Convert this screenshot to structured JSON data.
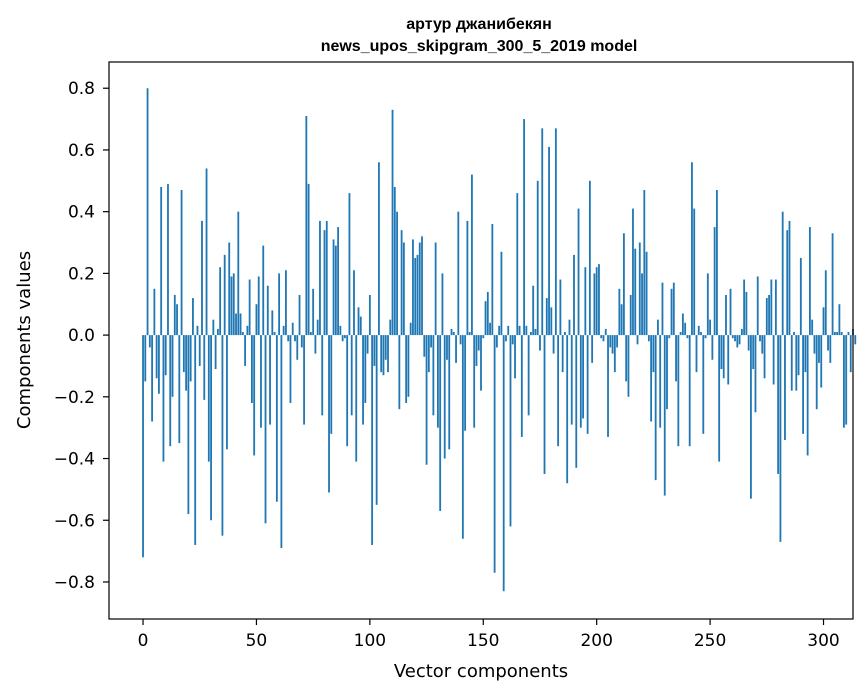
{
  "chart_data": {
    "type": "bar",
    "title_line1": "артур джанибекян",
    "title_line2": "news_upos_skipgram_300_5_2019 model",
    "xlabel": "Vector components",
    "ylabel": "Components values",
    "xlim": [
      -15,
      313
    ],
    "ylim": [
      -0.92,
      0.885
    ],
    "xticks": [
      0,
      50,
      100,
      150,
      200,
      250,
      300
    ],
    "xtick_labels": [
      "0",
      "50",
      "100",
      "150",
      "200",
      "250",
      "300"
    ],
    "yticks": [
      -0.8,
      -0.6,
      -0.4,
      -0.2,
      0.0,
      0.2,
      0.4,
      0.6,
      0.8
    ],
    "ytick_labels": [
      "−0.8",
      "−0.6",
      "−0.4",
      "−0.2",
      "0.0",
      "0.2",
      "0.4",
      "0.6",
      "0.8"
    ],
    "bar_color": "#1f77b4",
    "bar_width": 0.8,
    "values": [
      -0.72,
      -0.15,
      0.8,
      -0.04,
      -0.28,
      0.15,
      -0.14,
      -0.19,
      0.48,
      -0.41,
      -0.13,
      0.49,
      -0.36,
      -0.2,
      0.13,
      0.1,
      -0.35,
      0.47,
      -0.12,
      -0.18,
      -0.58,
      -0.15,
      0.12,
      -0.68,
      0.03,
      -0.1,
      0.37,
      -0.21,
      0.54,
      -0.41,
      -0.6,
      0.05,
      -0.11,
      0.02,
      0.22,
      -0.65,
      0.26,
      -0.37,
      0.3,
      0.19,
      0.2,
      0.07,
      0.4,
      0.07,
      0.01,
      -0.1,
      0.03,
      0.18,
      -0.22,
      -0.39,
      0.1,
      0.19,
      -0.3,
      0.29,
      -0.61,
      0.16,
      -0.29,
      0.08,
      0.01,
      -0.54,
      0.2,
      -0.69,
      0.03,
      0.21,
      -0.02,
      -0.22,
      0.04,
      -0.02,
      -0.08,
      0.13,
      -0.04,
      -0.29,
      0.71,
      0.49,
      0.01,
      0.15,
      -0.06,
      0.05,
      0.37,
      -0.26,
      0.34,
      0.37,
      -0.51,
      -0.32,
      0.31,
      0.29,
      0.35,
      0.03,
      -0.02,
      -0.01,
      -0.36,
      0.46,
      -0.26,
      0.21,
      -0.41,
      0.09,
      0.06,
      -0.29,
      -0.22,
      -0.06,
      0.13,
      -0.68,
      -0.1,
      -0.55,
      0.56,
      -0.12,
      -0.13,
      -0.08,
      -0.12,
      0.05,
      0.73,
      0.48,
      0.4,
      -0.24,
      0.34,
      0.3,
      -0.22,
      -0.2,
      0.04,
      0.31,
      0.25,
      0.26,
      0.3,
      0.32,
      -0.07,
      -0.42,
      -0.12,
      -0.04,
      -0.26,
      0.3,
      -0.3,
      -0.57,
      0.2,
      -0.4,
      -0.08,
      -0.37,
      0.02,
      0.01,
      -0.09,
      0.4,
      -0.03,
      -0.66,
      -0.31,
      0.37,
      0.01,
      0.52,
      -0.3,
      -0.1,
      -0.05,
      -0.18,
      -0.01,
      0.11,
      0.14,
      0.04,
      0.36,
      -0.77,
      -0.04,
      0.03,
      0.27,
      -0.83,
      -0.02,
      0.03,
      -0.62,
      -0.03,
      -0.14,
      0.46,
      0.03,
      -0.33,
      0.7,
      0.03,
      -0.26,
      0.01,
      0.16,
      0.02,
      0.5,
      -0.05,
      0.67,
      -0.45,
      0.12,
      0.61,
      0.09,
      -0.06,
      0.67,
      -0.36,
      0.18,
      -0.12,
      0.01,
      -0.48,
      0.05,
      -0.29,
      0.26,
      -0.43,
      0.41,
      -0.3,
      -0.27,
      0.22,
      -0.32,
      0.5,
      -0.09,
      0.2,
      0.22,
      0.23,
      -0.01,
      -0.02,
      0.02,
      -0.33,
      -0.04,
      -0.06,
      -0.12,
      -0.04,
      0.15,
      0.1,
      0.33,
      -0.15,
      -0.2,
      0.13,
      0.41,
      0.28,
      -0.03,
      0.3,
      0.2,
      0.47,
      0.27,
      -0.02,
      -0.28,
      -0.12,
      -0.47,
      0.05,
      -0.3,
      0.17,
      -0.52,
      -0.24,
      -0.01,
      0.15,
      0.17,
      -0.15,
      -0.36,
      0.01,
      0.07,
      0.04,
      -0.01,
      -0.36,
      0.56,
      0.41,
      -0.12,
      0.03,
      0.01,
      -0.32,
      -0.01,
      0.2,
      0.05,
      -0.08,
      0.35,
      0.47,
      -0.41,
      -0.11,
      -0.14,
      0.13,
      -0.16,
      0.15,
      -0.01,
      -0.02,
      -0.04,
      -0.03,
      0.02,
      0.18,
      0.14,
      -0.05,
      -0.53,
      -0.11,
      -0.25,
      0.19,
      -0.02,
      -0.06,
      -0.14,
      0.12,
      0.13,
      0.18,
      -0.16,
      0.18,
      -0.45,
      -0.67,
      0.4,
      -0.34,
      0.34,
      0.37,
      -0.18,
      0.01,
      -0.18,
      -0.13,
      0.25,
      -0.32,
      -0.12,
      -0.39,
      0.35,
      0.05,
      -0.06,
      -0.24,
      -0.09,
      -0.17,
      0.09,
      0.21,
      -0.05,
      -0.09,
      0.33,
      0.01,
      0.01,
      0.1,
      0.01,
      -0.3,
      -0.29,
      0.01,
      -0.12,
      0.02,
      -0.03
    ]
  }
}
